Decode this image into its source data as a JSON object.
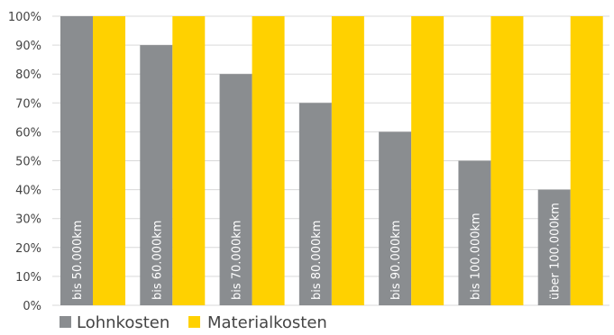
{
  "chart_data": {
    "type": "bar",
    "categories": [
      "bis 50.000km",
      "bis 60.000km",
      "bis 70.000km",
      "bis 80.000km",
      "bis 90.000km",
      "bis 100.000km",
      "über 100.000km"
    ],
    "series": [
      {
        "name": "Lohnkosten",
        "values": [
          100,
          90,
          80,
          70,
          60,
          50,
          40
        ],
        "color": "#8a8d90"
      },
      {
        "name": "Materialkosten",
        "values": [
          100,
          100,
          100,
          100,
          100,
          100,
          100
        ],
        "color": "#ffd100"
      }
    ],
    "y_ticks": [
      "0%",
      "10%",
      "20%",
      "30%",
      "40%",
      "50%",
      "60%",
      "70%",
      "80%",
      "90%",
      "100%"
    ],
    "ylim": [
      0,
      100
    ],
    "grid": true,
    "legend_position": "bottom-left"
  }
}
